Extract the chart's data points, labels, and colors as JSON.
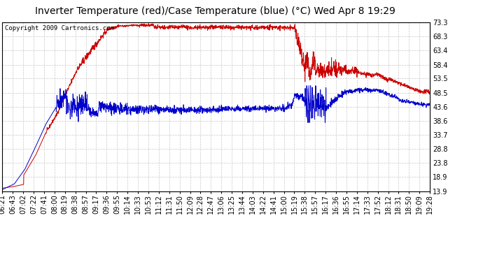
{
  "title": "Inverter Temperature (red)/Case Temperature (blue) (°C) Wed Apr 8 19:29",
  "copyright": "Copyright 2009 Cartronics.com",
  "y_ticks": [
    13.9,
    18.9,
    23.8,
    28.8,
    33.7,
    38.6,
    43.6,
    48.5,
    53.5,
    58.4,
    63.4,
    68.3,
    73.3
  ],
  "y_min": 13.9,
  "y_max": 73.3,
  "x_labels": [
    "06:21",
    "06:43",
    "07:02",
    "07:22",
    "07:41",
    "08:00",
    "08:19",
    "08:38",
    "08:57",
    "09:17",
    "09:36",
    "09:55",
    "10:14",
    "10:33",
    "10:53",
    "11:12",
    "11:31",
    "11:50",
    "12:09",
    "12:28",
    "12:47",
    "13:06",
    "13:25",
    "13:44",
    "14:03",
    "14:22",
    "14:41",
    "15:00",
    "15:19",
    "15:38",
    "15:57",
    "16:17",
    "16:36",
    "16:55",
    "17:14",
    "17:33",
    "17:52",
    "18:12",
    "18:31",
    "18:50",
    "19:09",
    "19:28"
  ],
  "bg_color": "#ffffff",
  "grid_color": "#c8c8c8",
  "red_color": "#cc0000",
  "blue_color": "#0000cc",
  "title_fontsize": 10,
  "copyright_fontsize": 6.5,
  "tick_fontsize": 7
}
